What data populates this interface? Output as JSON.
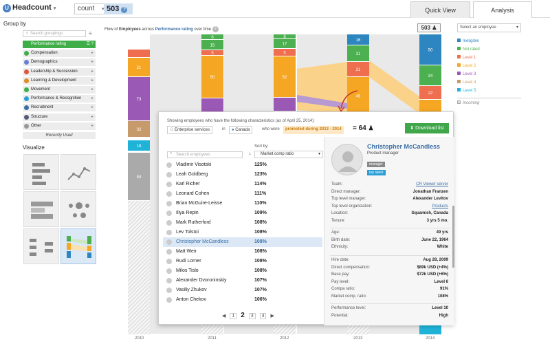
{
  "header": {
    "metric": "Headcount",
    "mode": "count",
    "total": "503",
    "help": "?"
  },
  "tabs": [
    {
      "label": "Quick View"
    },
    {
      "label": "Analysis"
    }
  ],
  "sidebar": {
    "group_by_title": "Group by",
    "search_placeholder": "Search groupings",
    "items": [
      {
        "label": "Performance rating",
        "color": "#3fae49"
      },
      {
        "label": "Compensation",
        "color": "#3fae49"
      },
      {
        "label": "Demographics",
        "color": "#6a7fd1"
      },
      {
        "label": "Leadership & Succession",
        "color": "#e0543b"
      },
      {
        "label": "Learning & Development",
        "color": "#e38a1f"
      },
      {
        "label": "Movement",
        "color": "#3fae49"
      },
      {
        "label": "Performance & Recognition",
        "color": "#2a9fd6"
      },
      {
        "label": "Recruitment",
        "color": "#3a6ea5"
      },
      {
        "label": "Structure",
        "color": "#555a77"
      },
      {
        "label": "Other",
        "color": "#999999"
      }
    ],
    "recently_used": "Recently Used",
    "visualize_title": "Visualize"
  },
  "chart": {
    "title_parts": [
      "Flow of ",
      "Employees",
      " across ",
      "Performance rating",
      " over time"
    ],
    "badge": "503",
    "years": [
      "2010",
      "2011",
      "2012",
      "2013",
      "2014"
    ]
  },
  "chart_data": {
    "type": "bar",
    "categories": [
      "2010",
      "2011",
      "2012",
      "2013",
      "2014"
    ],
    "visible_labels": {
      "2010": [
        "21",
        "73",
        "32",
        "18",
        "84"
      ],
      "2011": [
        "6",
        "15",
        "5",
        "50"
      ],
      "2012": [
        "8",
        "17",
        "5",
        "52"
      ],
      "2013": [
        "16",
        "31",
        "21",
        "46"
      ],
      "2014": [
        "50",
        "34",
        "22"
      ]
    }
  },
  "legend": {
    "select_placeholder": "Select an employee",
    "items": [
      {
        "label": "Ineligible",
        "color": "#2e86c1"
      },
      {
        "label": "Not rated",
        "color": "#4caf50"
      },
      {
        "label": "Level 1",
        "color": "#ee6e4f"
      },
      {
        "label": "Level 2",
        "color": "#f5a623"
      },
      {
        "label": "Level 3",
        "color": "#9b59b6"
      },
      {
        "label": "Level 4",
        "color": "#c79a6b"
      },
      {
        "label": "Level 5",
        "color": "#1fb3d8"
      }
    ],
    "incoming": "Incoming"
  },
  "popup": {
    "desc": "Showing employees who have the following characteristics (as of April 25, 2014):",
    "chip1": "Enterprise services",
    "in": "in",
    "chip2": "Canada",
    "who": "who were",
    "promo": "promoted during 2013 - 2014",
    "eq": "= 64",
    "download": "Download list",
    "sort_by": "Sort by:",
    "sort_value": "Market comp ratio",
    "search_placeholder": "Search employees",
    "employees": [
      {
        "name": "Vladimir Visotski",
        "value": "125%"
      },
      {
        "name": "Leah Goldberg",
        "value": "123%"
      },
      {
        "name": "Karl Richer",
        "value": "114%"
      },
      {
        "name": "Leonard Cohen",
        "value": "111%"
      },
      {
        "name": "Brian McGuire-Leisse",
        "value": "110%"
      },
      {
        "name": "Iliya Repin",
        "value": "109%"
      },
      {
        "name": "Mark Rutherford",
        "value": "108%"
      },
      {
        "name": "Lev Tolstoi",
        "value": "108%"
      },
      {
        "name": "Christopher McCandless",
        "value": "108%"
      },
      {
        "name": "Matt Weir",
        "value": "108%"
      },
      {
        "name": "Rudi Lorner",
        "value": "108%"
      },
      {
        "name": "Milos Tislo",
        "value": "108%"
      },
      {
        "name": "Alexander Dvoroninskiy",
        "value": "107%"
      },
      {
        "name": "Vasiliy Zhukov",
        "value": "107%"
      },
      {
        "name": "Anton Chekov",
        "value": "106%"
      }
    ],
    "pager": {
      "p1": "1",
      "current": "2",
      "p3": "3",
      "p4": "4"
    }
  },
  "profile": {
    "name": "Christopher McCandless",
    "title": "Product manager",
    "tag1": "manager",
    "tag2": "top talent",
    "rows1": [
      {
        "label": "Team:",
        "value": "CR Viewer server",
        "link": true
      },
      {
        "label": "Direct manager:",
        "value": "Jonathan Franzen"
      },
      {
        "label": "Top level manager:",
        "value": "Alexander Levitov"
      },
      {
        "label": "Top level organization:",
        "value": "Products",
        "link": true
      },
      {
        "label": "Location:",
        "value": "Squamish, Canada"
      },
      {
        "label": "Tenure:",
        "value": "3 yrs 5 mo."
      }
    ],
    "rows2": [
      {
        "label": "Age:",
        "value": "49 yrs"
      },
      {
        "label": "Birth date:",
        "value": "June 22, 1964"
      },
      {
        "label": "Ethnicity:",
        "value": "White"
      }
    ],
    "rows3": [
      {
        "label": "Hire date:",
        "value": "Aug 28, 2009"
      },
      {
        "label": "Direct compensation:",
        "value": "$89k USD (+4%)"
      },
      {
        "label": "Base pay:",
        "value": "$72k USD (+6%)"
      },
      {
        "label": "Pay level:",
        "value": "Level 6"
      },
      {
        "label": "Compa ratio:",
        "value": "91%"
      },
      {
        "label": "Market comp. ratio:",
        "value": "108%"
      }
    ],
    "rows4": [
      {
        "label": "Performance level:",
        "value": "Level 10"
      },
      {
        "label": "Potential:",
        "value": "High"
      }
    ]
  }
}
